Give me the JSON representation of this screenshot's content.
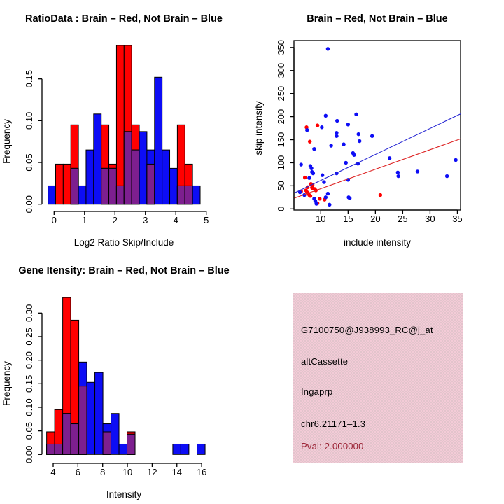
{
  "page": {
    "background": "#ffffff"
  },
  "colors": {
    "brain_red": "#ff0000",
    "not_brain_blue": "#0d0df5",
    "overlap_purple": "#7d1f8f",
    "axis_black": "#000000",
    "fit_line_blue": "#2323d2",
    "fit_line_red": "#dd2222",
    "info_bg_pink": "#ecc7d1",
    "pval_dark_red": "#9b2335"
  },
  "chart_data": [
    {
      "id": "ratio-hist",
      "type": "bar",
      "subtype": "overlaid-histogram",
      "title": "RatioData : Brain – Red, Not Brain – Blue",
      "xlabel": "Log2 Ratio Skip/Include",
      "ylabel": "Frequency",
      "x_ticks": [
        0,
        1,
        2,
        3,
        4,
        5
      ],
      "y_ticks": [
        "0.00",
        "0.05",
        "0.10",
        "0.15"
      ],
      "y_tick_values": [
        0,
        0.05,
        0.1,
        0.15
      ],
      "xlim": [
        -0.3,
        5.1
      ],
      "ylim": [
        0,
        0.19
      ],
      "legend": {
        "Brain": "red",
        "Not Brain": "blue"
      },
      "grid": false,
      "bars": [
        {
          "x0": -0.2,
          "x1": 0.05,
          "red": 0,
          "blue": 0.022
        },
        {
          "x0": 0.05,
          "x1": 0.3,
          "red": 0.048,
          "blue": 0
        },
        {
          "x0": 0.3,
          "x1": 0.55,
          "red": 0.048,
          "blue": 0
        },
        {
          "x0": 0.55,
          "x1": 0.8,
          "red": 0.095,
          "blue": 0.043
        },
        {
          "x0": 0.8,
          "x1": 1.05,
          "red": 0,
          "blue": 0.022
        },
        {
          "x0": 1.05,
          "x1": 1.3,
          "red": 0,
          "blue": 0.065
        },
        {
          "x0": 1.3,
          "x1": 1.55,
          "red": 0,
          "blue": 0.108
        },
        {
          "x0": 1.55,
          "x1": 1.8,
          "red": 0.095,
          "blue": 0.043
        },
        {
          "x0": 1.8,
          "x1": 2.05,
          "red": 0.048,
          "blue": 0.043
        },
        {
          "x0": 2.05,
          "x1": 2.3,
          "red": 0.19,
          "blue": 0.022
        },
        {
          "x0": 2.3,
          "x1": 2.55,
          "red": 0.19,
          "blue": 0.087
        },
        {
          "x0": 2.55,
          "x1": 2.8,
          "red": 0.095,
          "blue": 0.065
        },
        {
          "x0": 2.8,
          "x1": 3.05,
          "red": 0,
          "blue": 0.087
        },
        {
          "x0": 3.05,
          "x1": 3.3,
          "red": 0.048,
          "blue": 0.065
        },
        {
          "x0": 3.3,
          "x1": 3.55,
          "red": 0,
          "blue": 0.152
        },
        {
          "x0": 3.55,
          "x1": 3.8,
          "red": 0,
          "blue": 0.065
        },
        {
          "x0": 3.8,
          "x1": 4.05,
          "red": 0,
          "blue": 0.043
        },
        {
          "x0": 4.05,
          "x1": 4.3,
          "red": 0.095,
          "blue": 0.022
        },
        {
          "x0": 4.3,
          "x1": 4.55,
          "red": 0.048,
          "blue": 0.022
        },
        {
          "x0": 4.55,
          "x1": 4.8,
          "red": 0,
          "blue": 0.022
        }
      ]
    },
    {
      "id": "scatter",
      "type": "scatter",
      "title": "Brain – Red, Not Brain – Blue",
      "xlabel": "include intensity",
      "ylabel": "skip intensity",
      "x_ticks": [
        10,
        15,
        20,
        25,
        30,
        35
      ],
      "y_ticks": [
        0,
        50,
        100,
        150,
        200,
        250,
        300,
        350
      ],
      "xlim": [
        5.1,
        35.6
      ],
      "ylim": [
        -3,
        361
      ],
      "grid": false,
      "series": [
        {
          "name": "Brain",
          "color_key": "brain_red",
          "points": [
            [
              7.4,
              177
            ],
            [
              9.4,
              181
            ],
            [
              8.0,
              146
            ],
            [
              7.1,
              68
            ],
            [
              6.4,
              38
            ],
            [
              7.3,
              40
            ],
            [
              7.5,
              36
            ],
            [
              7.7,
              33
            ],
            [
              7.9,
              30
            ],
            [
              8.1,
              28
            ],
            [
              8.4,
              46
            ],
            [
              8.6,
              44
            ],
            [
              8.9,
              43
            ],
            [
              9.1,
              40
            ],
            [
              8.2,
              54
            ],
            [
              8.5,
              52
            ],
            [
              7.6,
              47
            ],
            [
              9.4,
              12
            ],
            [
              9.8,
              22
            ],
            [
              10.7,
              20
            ],
            [
              20.9,
              30
            ]
          ]
        },
        {
          "name": "Not Brain",
          "color_key": "not_brain_blue",
          "points": [
            [
              11.3,
              347
            ],
            [
              7.5,
              171
            ],
            [
              10.2,
              177
            ],
            [
              10.9,
              202
            ],
            [
              13.0,
              191
            ],
            [
              12.9,
              165
            ],
            [
              12.9,
              158
            ],
            [
              15.0,
              183
            ],
            [
              16.5,
              205
            ],
            [
              16.9,
              162
            ],
            [
              17.1,
              147
            ],
            [
              19.4,
              158
            ],
            [
              8.8,
              130
            ],
            [
              11.9,
              137
            ],
            [
              14.2,
              140
            ],
            [
              15.9,
              121
            ],
            [
              16.1,
              117
            ],
            [
              16.8,
              98
            ],
            [
              14.6,
              100
            ],
            [
              22.6,
              110
            ],
            [
              6.4,
              96
            ],
            [
              8.1,
              93
            ],
            [
              8.3,
              88
            ],
            [
              8.4,
              80
            ],
            [
              8.6,
              77
            ],
            [
              10.3,
              73
            ],
            [
              12.9,
              77
            ],
            [
              10.6,
              58
            ],
            [
              15.0,
              63
            ],
            [
              7.9,
              67
            ],
            [
              6.2,
              36
            ],
            [
              7.0,
              30
            ],
            [
              8.8,
              22
            ],
            [
              9.0,
              17
            ],
            [
              9.2,
              11
            ],
            [
              10.9,
              25
            ],
            [
              11.3,
              33
            ],
            [
              11.6,
              9
            ],
            [
              15.1,
              25
            ],
            [
              15.3,
              23
            ],
            [
              24.1,
              79
            ],
            [
              24.2,
              71
            ],
            [
              27.7,
              81
            ],
            [
              33.1,
              71
            ],
            [
              34.7,
              106
            ]
          ]
        }
      ],
      "fit_lines": [
        {
          "color_key": "fit_line_blue",
          "x0": 5.1,
          "y0": 34,
          "x1": 35.6,
          "y1": 206
        },
        {
          "color_key": "fit_line_red",
          "x0": 5.1,
          "y0": 23,
          "x1": 35.6,
          "y1": 152
        }
      ]
    },
    {
      "id": "gene-hist",
      "type": "bar",
      "subtype": "overlaid-histogram",
      "title": "Gene Itensity: Brain – Red, Not Brain – Blue",
      "xlabel": "Intensity",
      "ylabel": "Frequency",
      "x_ticks": [
        4,
        6,
        8,
        10,
        12,
        14,
        16
      ],
      "y_ticks": [
        "0.00",
        "0.05",
        "0.10",
        "0.15",
        "0.20",
        "0.25",
        "0.30"
      ],
      "y_tick_values": [
        0,
        0.05,
        0.1,
        0.15,
        0.2,
        0.25,
        0.3
      ],
      "xlim": [
        3.4,
        16.6
      ],
      "ylim": [
        0,
        0.34
      ],
      "legend": {
        "Brain": "red",
        "Not Brain": "blue"
      },
      "grid": false,
      "bars": [
        {
          "x0": 3.47,
          "x1": 4.12,
          "red": 0.048,
          "blue": 0.022
        },
        {
          "x0": 4.12,
          "x1": 4.77,
          "red": 0.095,
          "blue": 0.022
        },
        {
          "x0": 4.77,
          "x1": 5.42,
          "red": 0.333,
          "blue": 0.087
        },
        {
          "x0": 5.42,
          "x1": 6.07,
          "red": 0.285,
          "blue": 0.065
        },
        {
          "x0": 6.07,
          "x1": 6.72,
          "red": 0.145,
          "blue": 0.196
        },
        {
          "x0": 6.72,
          "x1": 7.37,
          "red": 0,
          "blue": 0.153
        },
        {
          "x0": 7.37,
          "x1": 8.02,
          "red": 0,
          "blue": 0.174
        },
        {
          "x0": 8.02,
          "x1": 8.67,
          "red": 0.048,
          "blue": 0.065
        },
        {
          "x0": 8.67,
          "x1": 9.32,
          "red": 0,
          "blue": 0.087
        },
        {
          "x0": 9.32,
          "x1": 9.97,
          "red": 0,
          "blue": 0.022
        },
        {
          "x0": 9.97,
          "x1": 10.62,
          "red": 0.048,
          "blue": 0.043
        },
        {
          "x0": 13.67,
          "x1": 14.32,
          "red": 0,
          "blue": 0.022
        },
        {
          "x0": 14.32,
          "x1": 14.97,
          "red": 0,
          "blue": 0.022
        },
        {
          "x0": 15.63,
          "x1": 16.28,
          "red": 0,
          "blue": 0.022
        }
      ]
    }
  ],
  "info_panel": {
    "lines": [
      {
        "text": "G7100750@J938993_RC@j_at",
        "color": "#000000"
      },
      {
        "text": "altCassette",
        "color": "#000000"
      },
      {
        "text": "Ingaprp",
        "color": "#000000"
      },
      {
        "text": "chr6.21171–1.3",
        "color": "#000000"
      },
      {
        "text": "Pval: 2.000000",
        "color": "#9b2335"
      }
    ]
  }
}
